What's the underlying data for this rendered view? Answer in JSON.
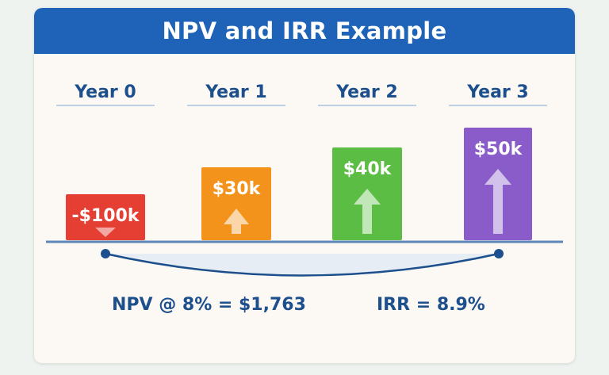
{
  "title": "NPV and IRR Example",
  "chart_data": {
    "type": "bar",
    "title": "NPV and IRR Example",
    "categories": [
      "Year 0",
      "Year 1",
      "Year 2",
      "Year 3"
    ],
    "values": [
      -100,
      30,
      40,
      50
    ],
    "value_labels": [
      "-$100k",
      "$30k",
      "$40k",
      "$50k"
    ],
    "unit": "$k",
    "colors": [
      "#e53e33",
      "#f4931c",
      "#5cbd44",
      "#8a5cc9"
    ],
    "arrows": [
      "down",
      "up",
      "up",
      "up"
    ],
    "grid": false
  },
  "summary": {
    "npv": "NPV @ 8% = $1,763",
    "irr": "IRR = 8.9%"
  }
}
